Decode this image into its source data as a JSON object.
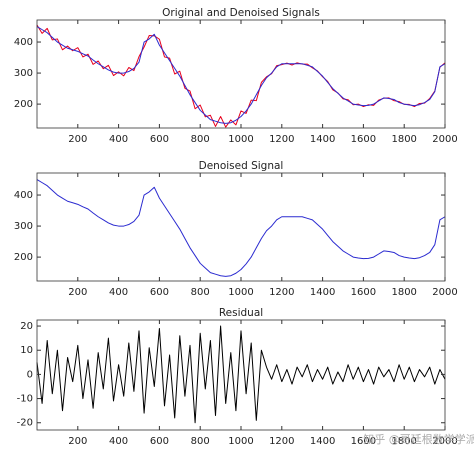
{
  "chart_data": [
    {
      "type": "line",
      "title": "Original and Denoised Signals",
      "x": [
        0,
        25,
        50,
        75,
        100,
        125,
        150,
        175,
        200,
        225,
        250,
        275,
        300,
        325,
        350,
        375,
        400,
        425,
        450,
        475,
        500,
        525,
        550,
        575,
        600,
        625,
        650,
        675,
        700,
        725,
        750,
        775,
        800,
        825,
        850,
        875,
        900,
        925,
        950,
        975,
        1000,
        1025,
        1050,
        1075,
        1100,
        1125,
        1150,
        1175,
        1200,
        1225,
        1250,
        1275,
        1300,
        1325,
        1350,
        1375,
        1400,
        1425,
        1450,
        1475,
        1500,
        1525,
        1550,
        1575,
        1600,
        1625,
        1650,
        1675,
        1700,
        1725,
        1750,
        1775,
        1800,
        1825,
        1850,
        1875,
        1900,
        1925,
        1950,
        1975,
        2000
      ],
      "series": [
        {
          "color": "#e8001c",
          "values": [
            455,
            428,
            444,
            407,
            410,
            375,
            387,
            372,
            382,
            352,
            361,
            328,
            339,
            314,
            325,
            292,
            304,
            291,
            318,
            308,
            353,
            384,
            421,
            420,
            409,
            352,
            348,
            297,
            306,
            251,
            242,
            185,
            197,
            159,
            164,
            128,
            160,
            126,
            149,
            133,
            178,
            170,
            213,
            211,
            270,
            288,
            298,
            324,
            327,
            332,
            326,
            333,
            329,
            329,
            317,
            307,
            288,
            273,
            246,
            236,
            217,
            214,
            198,
            200,
            192,
            198,
            196,
            213,
            219,
            220,
            211,
            208,
            199,
            199,
            192,
            202,
            203,
            218,
            242,
            319,
            333
          ]
        },
        {
          "color": "#2b2bd0",
          "values": [
            450,
            440,
            430,
            415,
            400,
            390,
            380,
            375,
            370,
            362,
            355,
            342,
            330,
            320,
            310,
            303,
            300,
            300,
            305,
            315,
            335,
            400,
            410,
            425,
            390,
            365,
            340,
            315,
            290,
            260,
            230,
            205,
            180,
            165,
            150,
            145,
            140,
            138,
            140,
            148,
            160,
            178,
            200,
            230,
            260,
            285,
            300,
            320,
            330,
            330,
            330,
            330,
            330,
            325,
            320,
            305,
            290,
            270,
            250,
            235,
            220,
            210,
            200,
            197,
            195,
            196,
            200,
            210,
            220,
            218,
            215,
            205,
            200,
            197,
            195,
            198,
            205,
            215,
            240,
            320,
            330
          ]
        }
      ],
      "xlim": [
        0,
        2000
      ],
      "ylim": [
        123,
        471
      ],
      "xticks": [
        200,
        400,
        600,
        800,
        1000,
        1200,
        1400,
        1600,
        1800,
        2000
      ],
      "yticks": [
        200,
        300,
        400
      ]
    },
    {
      "type": "line",
      "title": "Denoised Signal",
      "x": [
        0,
        25,
        50,
        75,
        100,
        125,
        150,
        175,
        200,
        225,
        250,
        275,
        300,
        325,
        350,
        375,
        400,
        425,
        450,
        475,
        500,
        525,
        550,
        575,
        600,
        625,
        650,
        675,
        700,
        725,
        750,
        775,
        800,
        825,
        850,
        875,
        900,
        925,
        950,
        975,
        1000,
        1025,
        1050,
        1075,
        1100,
        1125,
        1150,
        1175,
        1200,
        1225,
        1250,
        1275,
        1300,
        1325,
        1350,
        1375,
        1400,
        1425,
        1450,
        1475,
        1500,
        1525,
        1550,
        1575,
        1600,
        1625,
        1650,
        1675,
        1700,
        1725,
        1750,
        1775,
        1800,
        1825,
        1850,
        1875,
        1900,
        1925,
        1950,
        1975,
        2000
      ],
      "series": [
        {
          "color": "#2b2bd0",
          "values": [
            450,
            440,
            430,
            415,
            400,
            390,
            380,
            375,
            370,
            362,
            355,
            342,
            330,
            320,
            310,
            303,
            300,
            300,
            305,
            315,
            335,
            400,
            410,
            425,
            390,
            365,
            340,
            315,
            290,
            260,
            230,
            205,
            180,
            165,
            150,
            145,
            140,
            138,
            140,
            148,
            160,
            178,
            200,
            230,
            260,
            285,
            300,
            320,
            330,
            330,
            330,
            330,
            330,
            325,
            320,
            305,
            290,
            270,
            250,
            235,
            220,
            210,
            200,
            197,
            195,
            196,
            200,
            210,
            220,
            218,
            215,
            205,
            200,
            197,
            195,
            198,
            205,
            215,
            240,
            320,
            330
          ]
        }
      ],
      "xlim": [
        0,
        2000
      ],
      "ylim": [
        123,
        471
      ],
      "xticks": [
        200,
        400,
        600,
        800,
        1000,
        1200,
        1400,
        1600,
        1800,
        2000
      ],
      "yticks": [
        200,
        300,
        400
      ]
    },
    {
      "type": "line",
      "title": "Residual",
      "x": [
        0,
        25,
        50,
        75,
        100,
        125,
        150,
        175,
        200,
        225,
        250,
        275,
        300,
        325,
        350,
        375,
        400,
        425,
        450,
        475,
        500,
        525,
        550,
        575,
        600,
        625,
        650,
        675,
        700,
        725,
        750,
        775,
        800,
        825,
        850,
        875,
        900,
        925,
        950,
        975,
        1000,
        1025,
        1050,
        1075,
        1100,
        1125,
        1150,
        1175,
        1200,
        1225,
        1250,
        1275,
        1300,
        1325,
        1350,
        1375,
        1400,
        1425,
        1450,
        1475,
        1500,
        1525,
        1550,
        1575,
        1600,
        1625,
        1650,
        1675,
        1700,
        1725,
        1750,
        1775,
        1800,
        1825,
        1850,
        1875,
        1900,
        1925,
        1950,
        1975,
        2000
      ],
      "series": [
        {
          "color": "#000000",
          "values": [
            5,
            -12,
            14,
            -8,
            10,
            -15,
            7,
            -3,
            12,
            -10,
            6,
            -14,
            9,
            -6,
            15,
            -11,
            4,
            -9,
            13,
            -7,
            18,
            -16,
            11,
            -5,
            19,
            -13,
            8,
            -18,
            16,
            -9,
            12,
            -20,
            17,
            -6,
            14,
            -17,
            20,
            -12,
            9,
            -15,
            18,
            -8,
            13,
            -19,
            10,
            3,
            -2,
            4,
            -3,
            2,
            -4,
            3,
            -1,
            4,
            -3,
            2,
            -2,
            3,
            -4,
            1,
            -3,
            4,
            -2,
            3,
            -3,
            2,
            -4,
            3,
            -1,
            2,
            -3,
            4,
            -2,
            3,
            -3,
            2,
            -1,
            3,
            -4,
            2,
            -2
          ]
        }
      ],
      "xlim": [
        0,
        2000
      ],
      "ylim": [
        -23,
        22.5
      ],
      "xticks": [
        200,
        400,
        600,
        800,
        1000,
        1200,
        1400,
        1600,
        1800,
        2000
      ],
      "yticks": [
        -20,
        -10,
        0,
        10,
        20
      ]
    }
  ],
  "watermark": "知乎 @哥廷根数学学派"
}
